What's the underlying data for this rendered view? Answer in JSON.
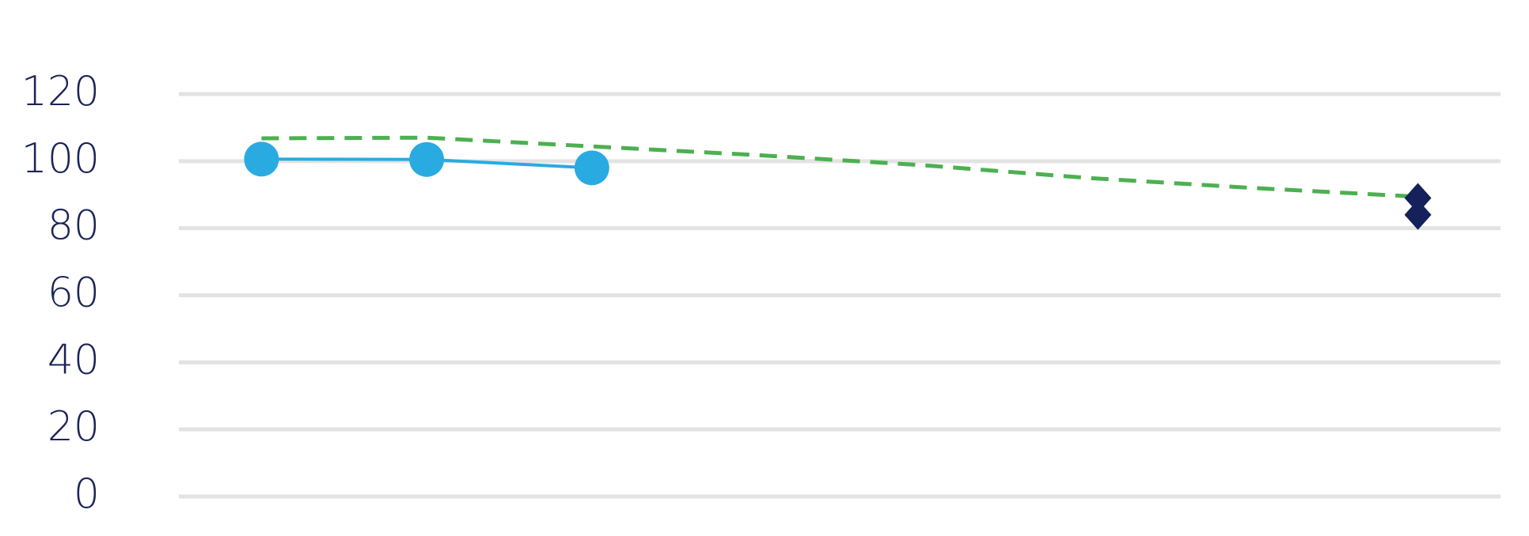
{
  "chart_data": {
    "type": "line",
    "categories": [
      null,
      null,
      null,
      null,
      null,
      null,
      null,
      null
    ],
    "series": [
      {
        "color": "#4cb050",
        "dash": true,
        "marker": "none",
        "values": [
          106.8,
          107,
          104.4,
          101.8,
          98.8,
          95,
          92,
          89.4
        ]
      },
      {
        "color": "#29abe2",
        "dash": false,
        "marker": "circle",
        "values": [
          100.6,
          100.5,
          98,
          null,
          null,
          null,
          null,
          null
        ]
      },
      {
        "color": "#14215a",
        "dash": false,
        "marker": "diamond",
        "values": [
          null,
          null,
          null,
          null,
          null,
          null,
          null,
          89
        ]
      },
      {
        "color": "#14215a",
        "dash": false,
        "marker": "diamond",
        "values": [
          null,
          null,
          null,
          null,
          null,
          null,
          null,
          84
        ]
      }
    ],
    "ylim": [
      0,
      120
    ],
    "yticks": [
      0,
      20,
      40,
      60,
      80,
      100,
      120
    ],
    "grid": true
  }
}
